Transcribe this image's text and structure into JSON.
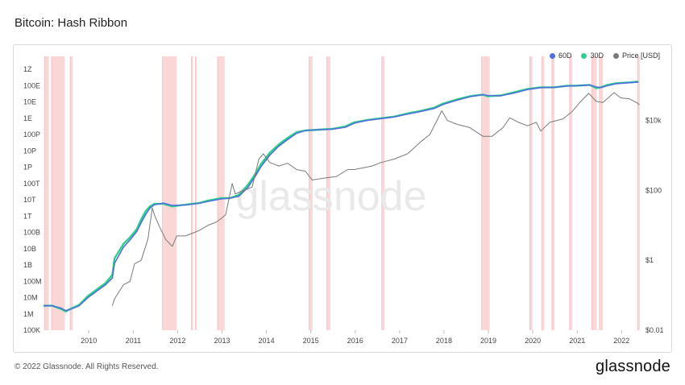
{
  "title": "Bitcoin: Hash Ribbon",
  "footer": "© 2022 Glassnode. All Rights Reserved.",
  "brand": "glassnode",
  "watermark": "glassnode",
  "colors": {
    "s60": "#4f6fdd",
    "s30": "#2ecf8e",
    "price": "#7a7a7a",
    "band": "#f7c9c9",
    "band_edge": "#f08a8a"
  },
  "chart_data": {
    "type": "line",
    "legend_placement": "top-right",
    "legend": [
      {
        "key": "s60",
        "label": "60D",
        "color": "#4f6fdd"
      },
      {
        "key": "s30",
        "label": "30D",
        "color": "#2ecf8e"
      },
      {
        "key": "price",
        "label": "Price [USD]",
        "color": "#7a7a7a"
      }
    ],
    "x_ticks": [
      "2010",
      "2011",
      "2012",
      "2013",
      "2014",
      "2015",
      "2016",
      "2017",
      "2018",
      "2019",
      "2020",
      "2021",
      "2022"
    ],
    "xlim": [
      2009.0,
      2022.45
    ],
    "y_left_log10_range": [
      5,
      21.5
    ],
    "y_left_ticks": [
      {
        "label": "100K",
        "log": 5
      },
      {
        "label": "1M",
        "log": 6
      },
      {
        "label": "10M",
        "log": 7
      },
      {
        "label": "100M",
        "log": 8
      },
      {
        "label": "1B",
        "log": 9
      },
      {
        "label": "10B",
        "log": 10
      },
      {
        "label": "100B",
        "log": 11
      },
      {
        "label": "1T",
        "log": 12
      },
      {
        "label": "10T",
        "log": 13
      },
      {
        "label": "100T",
        "log": 14
      },
      {
        "label": "1P",
        "log": 15
      },
      {
        "label": "10P",
        "log": 16
      },
      {
        "label": "100P",
        "log": 17
      },
      {
        "label": "1E",
        "log": 18
      },
      {
        "label": "10E",
        "log": 19
      },
      {
        "label": "100E",
        "log": 20
      },
      {
        "label": "1Z",
        "log": 21
      }
    ],
    "y_right_log10_range": [
      -2,
      5.7
    ],
    "y_right_ticks": [
      {
        "label": "$0.01",
        "log": -2
      },
      {
        "label": "$1",
        "log": 0
      },
      {
        "label": "$100",
        "log": 2
      },
      {
        "label": "$10k",
        "log": 4
      }
    ],
    "capitulation_bands": [
      [
        2009.02,
        2009.12
      ],
      [
        2009.18,
        2009.48
      ],
      [
        2009.6,
        2009.66
      ],
      [
        2011.68,
        2012.0
      ],
      [
        2012.33,
        2012.37
      ],
      [
        2012.42,
        2012.45
      ],
      [
        2012.92,
        2013.08
      ],
      [
        2014.98,
        2015.06
      ],
      [
        2015.38,
        2015.46
      ],
      [
        2016.62,
        2016.68
      ],
      [
        2018.87,
        2019.05
      ],
      [
        2019.95,
        2020.01
      ],
      [
        2020.22,
        2020.28
      ],
      [
        2020.45,
        2020.51
      ],
      [
        2020.85,
        2020.91
      ],
      [
        2021.35,
        2021.46
      ],
      [
        2021.52,
        2021.6
      ],
      [
        2022.38,
        2022.43
      ]
    ],
    "series": [
      {
        "key": "s30",
        "name": "30D",
        "axis": "left",
        "points": [
          [
            2009.0,
            6.5
          ],
          [
            2009.2,
            6.5
          ],
          [
            2009.4,
            6.3
          ],
          [
            2009.5,
            6.15
          ],
          [
            2009.6,
            6.3
          ],
          [
            2009.8,
            6.55
          ],
          [
            2010.0,
            7.1
          ],
          [
            2010.2,
            7.5
          ],
          [
            2010.4,
            7.9
          ],
          [
            2010.55,
            8.4
          ],
          [
            2010.6,
            9.4
          ],
          [
            2010.8,
            10.3
          ],
          [
            2010.95,
            10.7
          ],
          [
            2011.1,
            11.2
          ],
          [
            2011.2,
            11.8
          ],
          [
            2011.3,
            12.3
          ],
          [
            2011.4,
            12.6
          ],
          [
            2011.5,
            12.75
          ],
          [
            2011.7,
            12.75
          ],
          [
            2011.9,
            12.6
          ],
          [
            2012.2,
            12.7
          ],
          [
            2012.5,
            12.8
          ],
          [
            2012.7,
            12.95
          ],
          [
            2013.0,
            13.1
          ],
          [
            2013.2,
            13.1
          ],
          [
            2013.4,
            13.3
          ],
          [
            2013.6,
            13.9
          ],
          [
            2013.75,
            14.5
          ],
          [
            2013.9,
            15.2
          ],
          [
            2014.1,
            15.9
          ],
          [
            2014.3,
            16.4
          ],
          [
            2014.5,
            16.8
          ],
          [
            2014.7,
            17.15
          ],
          [
            2014.9,
            17.25
          ],
          [
            2015.2,
            17.3
          ],
          [
            2015.5,
            17.35
          ],
          [
            2015.8,
            17.5
          ],
          [
            2016.0,
            17.75
          ],
          [
            2016.3,
            17.9
          ],
          [
            2016.6,
            18.0
          ],
          [
            2016.9,
            18.1
          ],
          [
            2017.2,
            18.3
          ],
          [
            2017.5,
            18.45
          ],
          [
            2017.8,
            18.65
          ],
          [
            2018.0,
            18.9
          ],
          [
            2018.3,
            19.15
          ],
          [
            2018.6,
            19.35
          ],
          [
            2018.9,
            19.45
          ],
          [
            2019.0,
            19.35
          ],
          [
            2019.3,
            19.4
          ],
          [
            2019.6,
            19.6
          ],
          [
            2019.9,
            19.8
          ],
          [
            2020.2,
            19.9
          ],
          [
            2020.5,
            19.9
          ],
          [
            2020.8,
            20.0
          ],
          [
            2021.0,
            20.0
          ],
          [
            2021.3,
            20.05
          ],
          [
            2021.45,
            19.85
          ],
          [
            2021.55,
            19.9
          ],
          [
            2021.7,
            20.05
          ],
          [
            2021.9,
            20.15
          ],
          [
            2022.2,
            20.2
          ],
          [
            2022.4,
            20.25
          ]
        ]
      },
      {
        "key": "s60",
        "name": "60D",
        "axis": "left",
        "points": [
          [
            2009.0,
            6.5
          ],
          [
            2009.2,
            6.5
          ],
          [
            2009.4,
            6.35
          ],
          [
            2009.5,
            6.2
          ],
          [
            2009.6,
            6.28
          ],
          [
            2009.8,
            6.5
          ],
          [
            2010.0,
            7.0
          ],
          [
            2010.2,
            7.4
          ],
          [
            2010.4,
            7.8
          ],
          [
            2010.55,
            8.2
          ],
          [
            2010.6,
            9.1
          ],
          [
            2010.8,
            10.1
          ],
          [
            2010.95,
            10.55
          ],
          [
            2011.1,
            11.05
          ],
          [
            2011.2,
            11.6
          ],
          [
            2011.3,
            12.1
          ],
          [
            2011.4,
            12.5
          ],
          [
            2011.5,
            12.7
          ],
          [
            2011.7,
            12.8
          ],
          [
            2011.9,
            12.65
          ],
          [
            2012.2,
            12.68
          ],
          [
            2012.5,
            12.78
          ],
          [
            2012.7,
            12.9
          ],
          [
            2013.0,
            13.05
          ],
          [
            2013.2,
            13.1
          ],
          [
            2013.4,
            13.22
          ],
          [
            2013.6,
            13.75
          ],
          [
            2013.75,
            14.35
          ],
          [
            2013.9,
            15.05
          ],
          [
            2014.1,
            15.75
          ],
          [
            2014.3,
            16.3
          ],
          [
            2014.5,
            16.7
          ],
          [
            2014.7,
            17.08
          ],
          [
            2014.9,
            17.25
          ],
          [
            2015.2,
            17.3
          ],
          [
            2015.5,
            17.33
          ],
          [
            2015.8,
            17.45
          ],
          [
            2016.0,
            17.7
          ],
          [
            2016.3,
            17.88
          ],
          [
            2016.6,
            17.98
          ],
          [
            2016.9,
            18.08
          ],
          [
            2017.2,
            18.26
          ],
          [
            2017.5,
            18.42
          ],
          [
            2017.8,
            18.6
          ],
          [
            2018.0,
            18.85
          ],
          [
            2018.3,
            19.1
          ],
          [
            2018.6,
            19.32
          ],
          [
            2018.9,
            19.45
          ],
          [
            2019.0,
            19.4
          ],
          [
            2019.3,
            19.38
          ],
          [
            2019.6,
            19.55
          ],
          [
            2019.9,
            19.76
          ],
          [
            2020.2,
            19.88
          ],
          [
            2020.5,
            19.9
          ],
          [
            2020.8,
            19.98
          ],
          [
            2021.0,
            20.0
          ],
          [
            2021.3,
            20.05
          ],
          [
            2021.45,
            19.92
          ],
          [
            2021.55,
            19.88
          ],
          [
            2021.7,
            20.0
          ],
          [
            2021.9,
            20.12
          ],
          [
            2022.2,
            20.18
          ],
          [
            2022.4,
            20.22
          ]
        ]
      },
      {
        "key": "price",
        "name": "Price [USD]",
        "axis": "right",
        "points": [
          [
            2010.55,
            -1.3
          ],
          [
            2010.6,
            -1.1
          ],
          [
            2010.8,
            -0.7
          ],
          [
            2010.95,
            -0.6
          ],
          [
            2011.05,
            -0.1
          ],
          [
            2011.2,
            0.0
          ],
          [
            2011.35,
            0.6
          ],
          [
            2011.45,
            1.5
          ],
          [
            2011.5,
            1.3
          ],
          [
            2011.6,
            1.0
          ],
          [
            2011.75,
            0.6
          ],
          [
            2011.9,
            0.4
          ],
          [
            2012.0,
            0.7
          ],
          [
            2012.2,
            0.7
          ],
          [
            2012.5,
            0.85
          ],
          [
            2012.7,
            1.0
          ],
          [
            2012.9,
            1.1
          ],
          [
            2013.1,
            1.3
          ],
          [
            2013.25,
            2.2
          ],
          [
            2013.32,
            1.9
          ],
          [
            2013.5,
            2.0
          ],
          [
            2013.7,
            2.1
          ],
          [
            2013.85,
            2.9
          ],
          [
            2013.95,
            3.05
          ],
          [
            2014.1,
            2.8
          ],
          [
            2014.3,
            2.7
          ],
          [
            2014.5,
            2.78
          ],
          [
            2014.7,
            2.6
          ],
          [
            2014.9,
            2.55
          ],
          [
            2015.05,
            2.3
          ],
          [
            2015.3,
            2.35
          ],
          [
            2015.6,
            2.4
          ],
          [
            2015.85,
            2.6
          ],
          [
            2016.0,
            2.6
          ],
          [
            2016.4,
            2.7
          ],
          [
            2016.6,
            2.8
          ],
          [
            2016.9,
            2.9
          ],
          [
            2017.2,
            3.05
          ],
          [
            2017.5,
            3.4
          ],
          [
            2017.7,
            3.6
          ],
          [
            2017.9,
            4.1
          ],
          [
            2017.97,
            4.28
          ],
          [
            2018.1,
            4.0
          ],
          [
            2018.3,
            3.9
          ],
          [
            2018.6,
            3.8
          ],
          [
            2018.9,
            3.55
          ],
          [
            2019.1,
            3.55
          ],
          [
            2019.35,
            3.8
          ],
          [
            2019.5,
            4.08
          ],
          [
            2019.7,
            3.95
          ],
          [
            2019.9,
            3.85
          ],
          [
            2020.1,
            3.95
          ],
          [
            2020.2,
            3.7
          ],
          [
            2020.4,
            3.95
          ],
          [
            2020.7,
            4.05
          ],
          [
            2020.9,
            4.25
          ],
          [
            2021.1,
            4.55
          ],
          [
            2021.28,
            4.78
          ],
          [
            2021.45,
            4.55
          ],
          [
            2021.6,
            4.52
          ],
          [
            2021.85,
            4.8
          ],
          [
            2022.0,
            4.65
          ],
          [
            2022.2,
            4.62
          ],
          [
            2022.38,
            4.5
          ],
          [
            2022.42,
            4.45
          ]
        ]
      }
    ]
  }
}
